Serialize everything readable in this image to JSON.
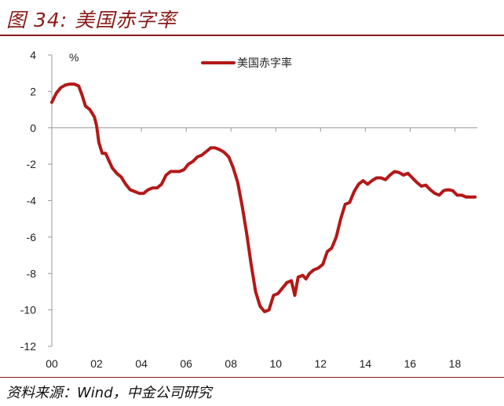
{
  "figure": {
    "title": "图 34: 美国赤字率",
    "source": "资料来源：Wind，中金公司研究"
  },
  "chart_data": {
    "type": "line",
    "title": "",
    "ylabel": "%",
    "xlabel": "",
    "ylim": [
      -12,
      4
    ],
    "yticks": [
      4,
      2,
      0,
      -2,
      -4,
      -6,
      -8,
      -10,
      -12
    ],
    "xlim": [
      2000,
      2019
    ],
    "xticks": [
      {
        "x": 2000,
        "label": "00"
      },
      {
        "x": 2002,
        "label": "02"
      },
      {
        "x": 2004,
        "label": "04"
      },
      {
        "x": 2006,
        "label": "06"
      },
      {
        "x": 2008,
        "label": "08"
      },
      {
        "x": 2010,
        "label": "10"
      },
      {
        "x": 2012,
        "label": "12"
      },
      {
        "x": 2014,
        "label": "14"
      },
      {
        "x": 2016,
        "label": "16"
      },
      {
        "x": 2018,
        "label": "18"
      }
    ],
    "legend_position": "top-center",
    "grid": false,
    "series": [
      {
        "name": "美国赤字率",
        "color": "#b41818",
        "points": [
          [
            2000.0,
            1.4
          ],
          [
            2000.2,
            1.9
          ],
          [
            2000.4,
            2.2
          ],
          [
            2000.6,
            2.35
          ],
          [
            2000.8,
            2.4
          ],
          [
            2001.0,
            2.4
          ],
          [
            2001.2,
            2.3
          ],
          [
            2001.35,
            1.8
          ],
          [
            2001.5,
            1.2
          ],
          [
            2001.7,
            1.0
          ],
          [
            2001.9,
            0.6
          ],
          [
            2002.0,
            0.1
          ],
          [
            2002.1,
            -0.8
          ],
          [
            2002.25,
            -1.4
          ],
          [
            2002.4,
            -1.4
          ],
          [
            2002.55,
            -1.8
          ],
          [
            2002.7,
            -2.2
          ],
          [
            2002.9,
            -2.5
          ],
          [
            2003.1,
            -2.7
          ],
          [
            2003.3,
            -3.1
          ],
          [
            2003.5,
            -3.4
          ],
          [
            2003.7,
            -3.5
          ],
          [
            2003.9,
            -3.6
          ],
          [
            2004.1,
            -3.6
          ],
          [
            2004.3,
            -3.4
          ],
          [
            2004.5,
            -3.3
          ],
          [
            2004.7,
            -3.3
          ],
          [
            2004.9,
            -3.1
          ],
          [
            2005.1,
            -2.6
          ],
          [
            2005.3,
            -2.4
          ],
          [
            2005.5,
            -2.4
          ],
          [
            2005.7,
            -2.4
          ],
          [
            2005.9,
            -2.3
          ],
          [
            2006.1,
            -2.0
          ],
          [
            2006.3,
            -1.85
          ],
          [
            2006.5,
            -1.6
          ],
          [
            2006.7,
            -1.5
          ],
          [
            2006.9,
            -1.3
          ],
          [
            2007.1,
            -1.1
          ],
          [
            2007.3,
            -1.1
          ],
          [
            2007.5,
            -1.2
          ],
          [
            2007.7,
            -1.35
          ],
          [
            2007.9,
            -1.6
          ],
          [
            2008.1,
            -2.2
          ],
          [
            2008.3,
            -3.0
          ],
          [
            2008.5,
            -4.3
          ],
          [
            2008.7,
            -5.8
          ],
          [
            2008.9,
            -7.5
          ],
          [
            2009.1,
            -9.0
          ],
          [
            2009.3,
            -9.8
          ],
          [
            2009.5,
            -10.1
          ],
          [
            2009.7,
            -10.0
          ],
          [
            2009.9,
            -9.2
          ],
          [
            2010.1,
            -9.1
          ],
          [
            2010.3,
            -8.8
          ],
          [
            2010.5,
            -8.5
          ],
          [
            2010.7,
            -8.4
          ],
          [
            2010.85,
            -9.2
          ],
          [
            2011.0,
            -8.2
          ],
          [
            2011.2,
            -8.1
          ],
          [
            2011.35,
            -8.3
          ],
          [
            2011.5,
            -8.0
          ],
          [
            2011.7,
            -7.8
          ],
          [
            2011.9,
            -7.7
          ],
          [
            2012.1,
            -7.5
          ],
          [
            2012.3,
            -6.8
          ],
          [
            2012.5,
            -6.6
          ],
          [
            2012.7,
            -6.0
          ],
          [
            2012.9,
            -5.0
          ],
          [
            2013.1,
            -4.2
          ],
          [
            2013.3,
            -4.1
          ],
          [
            2013.5,
            -3.5
          ],
          [
            2013.7,
            -3.1
          ],
          [
            2013.9,
            -2.9
          ],
          [
            2014.1,
            -3.1
          ],
          [
            2014.3,
            -2.9
          ],
          [
            2014.5,
            -2.75
          ],
          [
            2014.7,
            -2.75
          ],
          [
            2014.9,
            -2.85
          ],
          [
            2015.1,
            -2.6
          ],
          [
            2015.3,
            -2.4
          ],
          [
            2015.5,
            -2.45
          ],
          [
            2015.7,
            -2.6
          ],
          [
            2015.9,
            -2.5
          ],
          [
            2016.1,
            -2.75
          ],
          [
            2016.3,
            -3.0
          ],
          [
            2016.5,
            -3.2
          ],
          [
            2016.7,
            -3.15
          ],
          [
            2016.9,
            -3.4
          ],
          [
            2017.1,
            -3.6
          ],
          [
            2017.3,
            -3.7
          ],
          [
            2017.5,
            -3.45
          ],
          [
            2017.7,
            -3.4
          ],
          [
            2017.9,
            -3.45
          ],
          [
            2018.1,
            -3.7
          ],
          [
            2018.3,
            -3.7
          ],
          [
            2018.5,
            -3.8
          ],
          [
            2018.7,
            -3.8
          ],
          [
            2018.9,
            -3.8
          ]
        ]
      }
    ]
  }
}
